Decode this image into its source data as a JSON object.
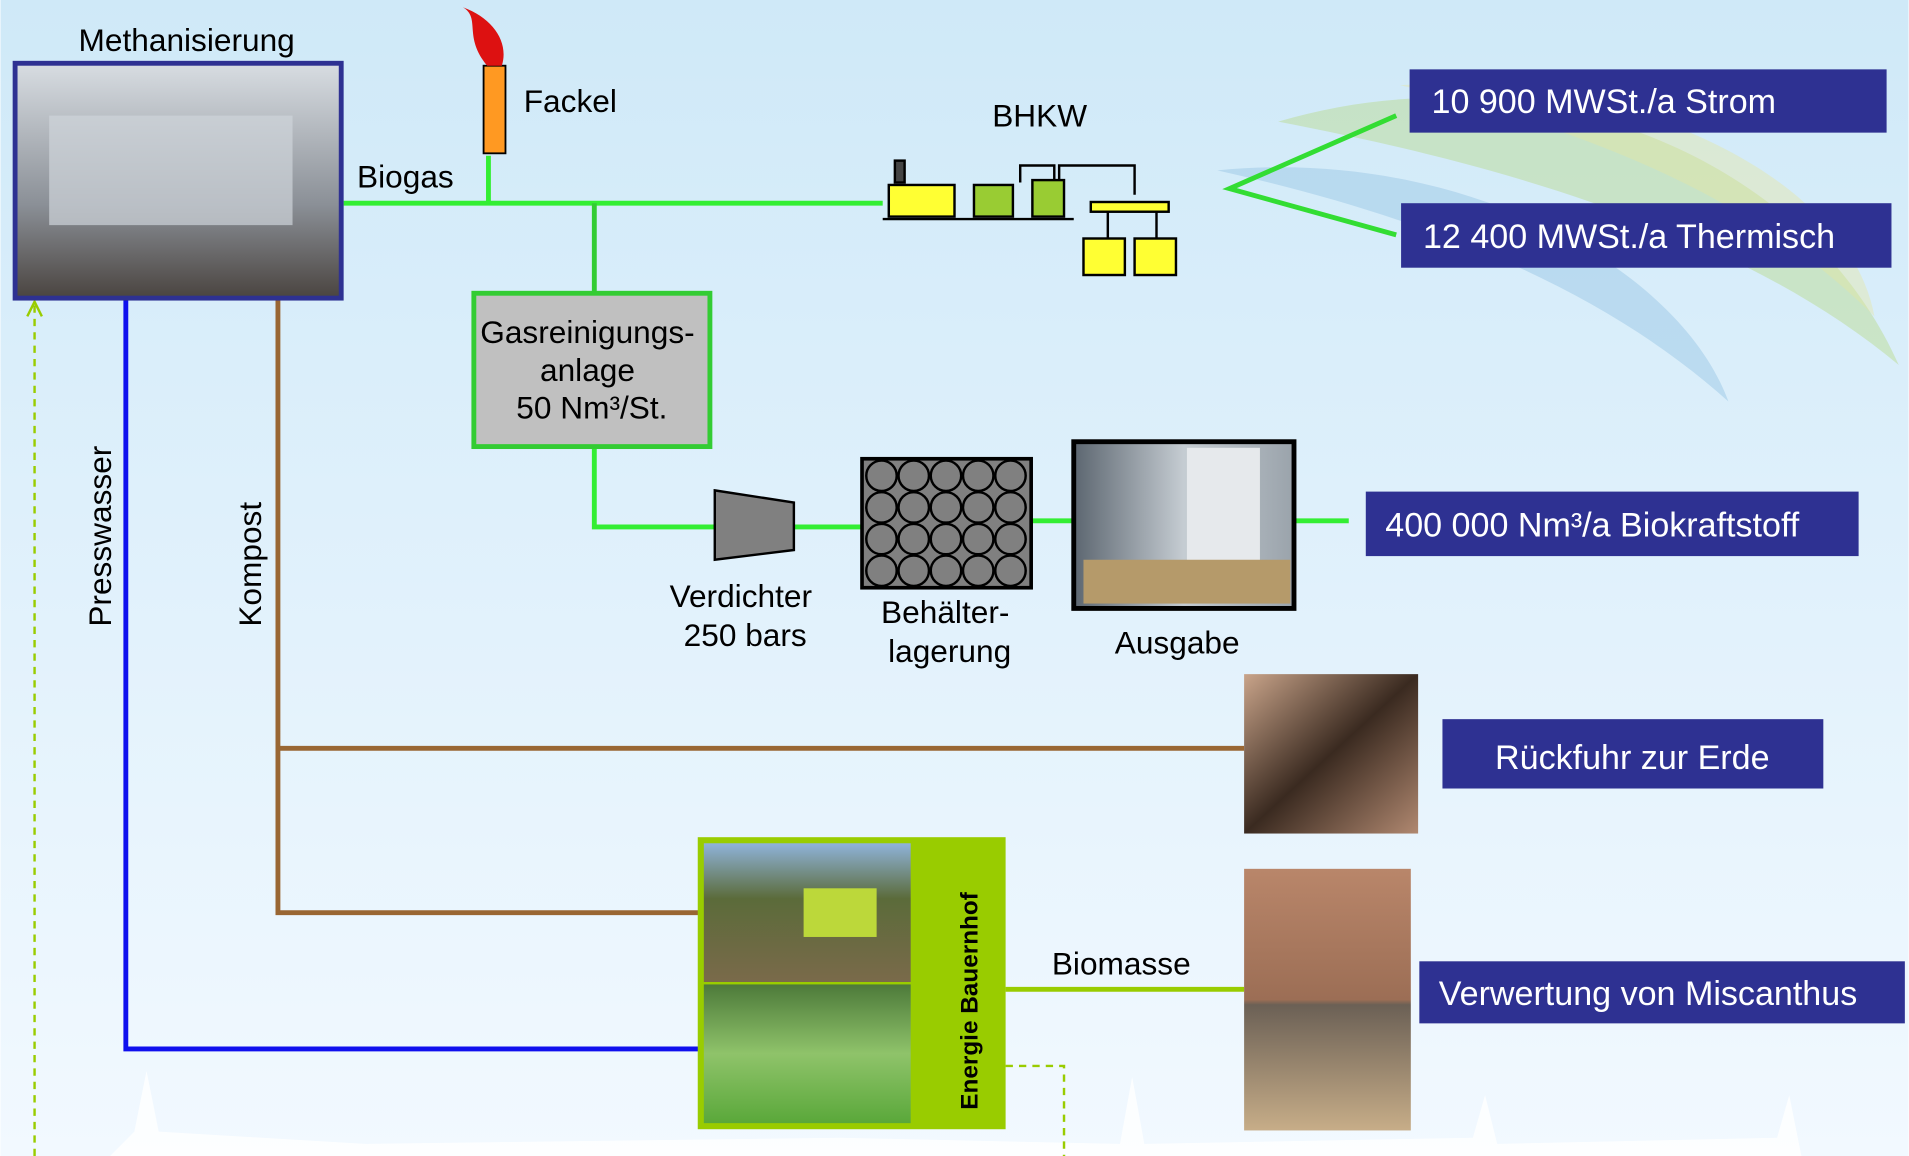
{
  "nodes": {
    "methanisierung": "Methanisierung",
    "fackel": "Fackel",
    "biogas": "Biogas",
    "bhkw": "BHKW",
    "strom": "10 900 MWSt./a Strom",
    "thermisch": "12 400 MWSt./a Thermisch",
    "gasreinigung": [
      "Gasreinigungs-",
      "anlage",
      "50 Nm³/St."
    ],
    "verdichter": [
      "Verdichter",
      "250 bars"
    ],
    "behaelter": [
      "Behälter-",
      "lagerung"
    ],
    "ausgabe": "Ausgabe",
    "biokraftstoff": "400 000 Nm³/a Biokraftstoff",
    "presswasser": "Presswasser",
    "kompost": "Kompost",
    "rueckfuhr": "Rückfuhr zur Erde",
    "energie_bauernhof": "Energie Bauernhof",
    "biomasse": "Biomasse",
    "miscanthus": "Verwertung von Miscanthus"
  }
}
